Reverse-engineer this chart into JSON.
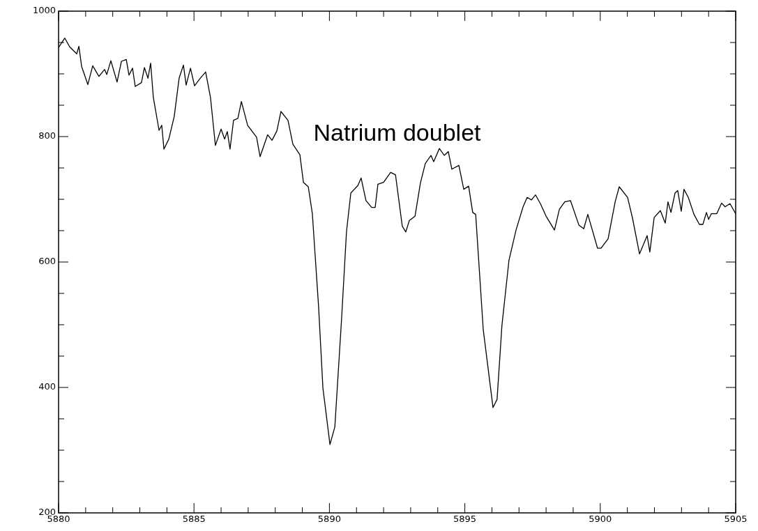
{
  "chart_data": {
    "type": "line",
    "annotations": [
      "Natrium doublet"
    ],
    "x": [
      5880.0,
      5880.23,
      5880.41,
      5880.67,
      5880.75,
      5880.85,
      5881.08,
      5881.26,
      5881.49,
      5881.7,
      5881.78,
      5881.93,
      5882.16,
      5882.32,
      5882.5,
      5882.6,
      5882.73,
      5882.83,
      5883.06,
      5883.17,
      5883.3,
      5883.4,
      5883.5,
      5883.71,
      5883.81,
      5883.89,
      5884.07,
      5884.27,
      5884.45,
      5884.61,
      5884.71,
      5884.87,
      5885.02,
      5885.23,
      5885.43,
      5885.61,
      5885.79,
      5886.0,
      5886.13,
      5886.23,
      5886.33,
      5886.46,
      5886.62,
      5886.75,
      5886.98,
      5887.31,
      5887.44,
      5887.72,
      5887.88,
      5888.06,
      5888.21,
      5888.47,
      5888.65,
      5888.91,
      5889.04,
      5889.22,
      5889.37,
      5889.6,
      5889.76,
      5890.02,
      5890.2,
      5890.45,
      5890.63,
      5890.79,
      5891.05,
      5891.17,
      5891.35,
      5891.56,
      5891.69,
      5891.79,
      5892.0,
      5892.26,
      5892.44,
      5892.69,
      5892.82,
      5892.95,
      5893.16,
      5893.36,
      5893.54,
      5893.75,
      5893.85,
      5894.06,
      5894.24,
      5894.39,
      5894.52,
      5894.78,
      5894.96,
      5895.14,
      5895.29,
      5895.4,
      5895.68,
      5896.04,
      5896.19,
      5896.37,
      5896.63,
      5896.89,
      5897.15,
      5897.3,
      5897.46,
      5897.61,
      5897.79,
      5898.0,
      5898.31,
      5898.49,
      5898.69,
      5898.9,
      5899.21,
      5899.39,
      5899.54,
      5899.9,
      5900.03,
      5900.29,
      5900.55,
      5900.7,
      5901.01,
      5901.19,
      5901.45,
      5901.73,
      5901.83,
      5901.99,
      5902.22,
      5902.4,
      5902.5,
      5902.61,
      5902.76,
      5902.86,
      5902.99,
      5903.09,
      5903.25,
      5903.46,
      5903.66,
      5903.79,
      5903.92,
      5904.0,
      5904.1,
      5904.3,
      5904.48,
      5904.61,
      5904.79,
      5905.0
    ],
    "series": [
      {
        "color": "#000000",
        "values": [
          942,
          957,
          943,
          932,
          944,
          912,
          883,
          913,
          896,
          907,
          899,
          921,
          887,
          920,
          923,
          898,
          909,
          880,
          886,
          910,
          893,
          917,
          862,
          810,
          818,
          780,
          796,
          832,
          893,
          914,
          882,
          909,
          881,
          893,
          903,
          862,
          786,
          812,
          796,
          808,
          780,
          826,
          829,
          856,
          818,
          799,
          768,
          803,
          794,
          809,
          840,
          826,
          788,
          771,
          727,
          720,
          677,
          529,
          399,
          309,
          337,
          510,
          648,
          710,
          722,
          734,
          698,
          687,
          687,
          724,
          727,
          743,
          739,
          657,
          648,
          666,
          673,
          726,
          757,
          770,
          760,
          781,
          770,
          776,
          748,
          754,
          716,
          721,
          679,
          676,
          492,
          368,
          381,
          499,
          603,
          651,
          688,
          703,
          699,
          707,
          693,
          673,
          651,
          684,
          696,
          698,
          659,
          653,
          676,
          622,
          622,
          637,
          696,
          720,
          703,
          670,
          613,
          642,
          616,
          671,
          682,
          662,
          696,
          679,
          710,
          714,
          681,
          716,
          703,
          676,
          660,
          660,
          679,
          668,
          677,
          677,
          694,
          688,
          693,
          677
        ]
      }
    ],
    "xlim": [
      5880,
      5905
    ],
    "xticks": [
      5880,
      {
        "value": 5881,
        "label": null
      },
      {
        "value": 5882,
        "label": null
      },
      {
        "value": 5883,
        "label": null
      },
      {
        "value": 5884,
        "label": null
      },
      5885,
      {
        "value": 5886,
        "label": null
      },
      {
        "value": 5887,
        "label": null
      },
      {
        "value": 5888,
        "label": null
      },
      {
        "value": 5889,
        "label": null
      },
      5890,
      {
        "value": 5891,
        "label": null
      },
      {
        "value": 5892,
        "label": null
      },
      {
        "value": 5893,
        "label": null
      },
      {
        "value": 5894,
        "label": null
      },
      5895,
      {
        "value": 5896,
        "label": null
      },
      {
        "value": 5897,
        "label": null
      },
      {
        "value": 5898,
        "label": null
      },
      {
        "value": 5899,
        "label": null
      },
      5900,
      {
        "value": 5901,
        "label": null
      },
      {
        "value": 5902,
        "label": null
      },
      {
        "value": 5903,
        "label": null
      },
      {
        "value": 5904,
        "label": null
      },
      5905
    ],
    "ylim": [
      200,
      1000
    ],
    "yticks": [
      200,
      {
        "value": 250,
        "label": null
      },
      {
        "value": 300,
        "label": null
      },
      {
        "value": 350,
        "label": null
      },
      400,
      {
        "value": 450,
        "label": null
      },
      {
        "value": 500,
        "label": null
      },
      {
        "value": 550,
        "label": null
      },
      600,
      {
        "value": 650,
        "label": null
      },
      {
        "value": 700,
        "label": null
      },
      {
        "value": 750,
        "label": null
      },
      800,
      {
        "value": 850,
        "label": null
      },
      {
        "value": 900,
        "label": null
      },
      {
        "value": 950,
        "label": null
      },
      1000
    ]
  }
}
